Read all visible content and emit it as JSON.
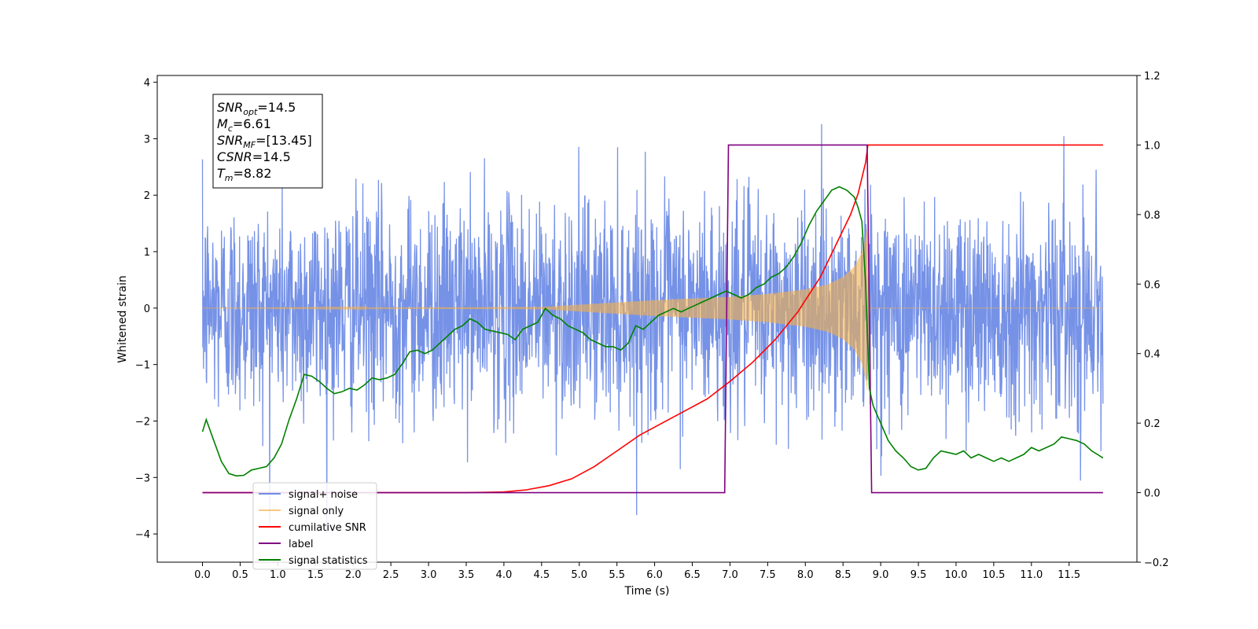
{
  "chart_data": {
    "type": "line",
    "xlabel": "Time (s)",
    "ylabel": "Whitened strain",
    "xlim": [
      -0.6,
      12.4
    ],
    "ylim": [
      -4.5,
      4.12
    ],
    "ylim_right": [
      -0.2,
      1.2
    ],
    "x_ticks": [
      0.0,
      0.5,
      1.0,
      1.5,
      2.0,
      2.5,
      3.0,
      3.5,
      4.0,
      4.5,
      5.0,
      5.5,
      6.0,
      6.5,
      7.0,
      7.5,
      8.0,
      8.5,
      9.0,
      9.5,
      10.0,
      10.5,
      11.0,
      11.5
    ],
    "x_tick_labels": [
      "0.0",
      "0.5",
      "1.0",
      "1.5",
      "2.0",
      "2.5",
      "3.0",
      "3.5",
      "4.0",
      "4.5",
      "5.0",
      "5.5",
      "6.0",
      "6.5",
      "7.0",
      "7.5",
      "8.0",
      "8.5",
      "9.0",
      "9.5",
      "10.0",
      "10.5",
      "11.0",
      "11.5"
    ],
    "y_ticks": [
      -4,
      -3,
      -2,
      -1,
      0,
      1,
      2,
      3,
      4
    ],
    "y_tick_labels": [
      "−4",
      "−3",
      "−2",
      "−1",
      "0",
      "1",
      "2",
      "3",
      "4"
    ],
    "y_ticks_right": [
      -0.2,
      0.0,
      0.2,
      0.4,
      0.6,
      0.8,
      1.0,
      1.2
    ],
    "y_tick_labels_right": [
      "−0.2",
      "0.0",
      "0.2",
      "0.4",
      "0.6",
      "0.8",
      "1.0",
      "1.2"
    ],
    "grid": false,
    "legend_position": "bottom-left",
    "annotation_box": [
      {
        "sym": "SNR",
        "sub": "opt",
        "val": "=14.5"
      },
      {
        "sym": "M",
        "sub": "c",
        "val": "=6.61"
      },
      {
        "sym": "SNR",
        "sub": "MF",
        "val": "=[13.45]"
      },
      {
        "sym": "CSNR",
        "sub": "",
        "val": "=14.5"
      },
      {
        "sym": "T",
        "sub": "m",
        "val": "=8.82"
      }
    ],
    "series": [
      {
        "name": "signal+ noise",
        "axis": "left",
        "color": "#6f8ce6",
        "description_values": {
          "x_start": 0.0,
          "x_end": 11.95,
          "mean": 0.0,
          "std": 1.0,
          "envelope_approx": [
            -2.1,
            2.4
          ]
        }
      },
      {
        "name": "signal only",
        "axis": "left",
        "color": "#f5b14a",
        "envelope": {
          "x": [
            0.0,
            4.5,
            5.0,
            5.5,
            6.0,
            6.5,
            7.0,
            7.5,
            8.0,
            8.3,
            8.5,
            8.65,
            8.75,
            8.8,
            8.82,
            8.83,
            8.86,
            11.95
          ],
          "amplitude": [
            0.0,
            0.02,
            0.06,
            0.1,
            0.14,
            0.17,
            0.2,
            0.25,
            0.33,
            0.42,
            0.55,
            0.73,
            0.98,
            1.25,
            1.45,
            1.1,
            0.0,
            0.0
          ]
        }
      },
      {
        "name": "cumilative SNR",
        "axis": "right",
        "color": "#ff0000",
        "x": [
          0.0,
          3.5,
          4.0,
          4.3,
          4.6,
          4.9,
          5.2,
          5.5,
          5.8,
          6.1,
          6.4,
          6.7,
          7.0,
          7.3,
          7.6,
          7.9,
          8.2,
          8.4,
          8.6,
          8.7,
          8.8,
          8.83,
          11.95
        ],
        "y": [
          0.0,
          0.0,
          0.002,
          0.008,
          0.02,
          0.04,
          0.075,
          0.12,
          0.165,
          0.2,
          0.235,
          0.27,
          0.32,
          0.375,
          0.44,
          0.52,
          0.62,
          0.71,
          0.8,
          0.86,
          0.95,
          1.0,
          1.0
        ]
      },
      {
        "name": "label",
        "axis": "right",
        "color": "#800080",
        "x": [
          0.0,
          6.93,
          6.98,
          8.82,
          8.88,
          11.95
        ],
        "y": [
          0.0,
          0.0,
          1.0,
          1.0,
          0.0,
          0.0
        ]
      },
      {
        "name": "signal statistics",
        "axis": "right",
        "color": "#008000",
        "x": [
          0.0,
          0.05,
          0.15,
          0.25,
          0.35,
          0.45,
          0.55,
          0.65,
          0.75,
          0.85,
          0.95,
          1.05,
          1.15,
          1.25,
          1.35,
          1.45,
          1.55,
          1.65,
          1.75,
          1.85,
          1.95,
          2.05,
          2.15,
          2.25,
          2.35,
          2.45,
          2.55,
          2.65,
          2.75,
          2.85,
          2.95,
          3.05,
          3.15,
          3.25,
          3.35,
          3.45,
          3.55,
          3.65,
          3.75,
          3.85,
          3.95,
          4.05,
          4.15,
          4.25,
          4.35,
          4.45,
          4.55,
          4.65,
          4.75,
          4.85,
          4.95,
          5.05,
          5.15,
          5.25,
          5.35,
          5.45,
          5.55,
          5.65,
          5.75,
          5.85,
          5.95,
          6.05,
          6.15,
          6.25,
          6.35,
          6.45,
          6.55,
          6.65,
          6.75,
          6.85,
          6.95,
          7.05,
          7.15,
          7.25,
          7.35,
          7.45,
          7.55,
          7.65,
          7.75,
          7.85,
          7.95,
          8.05,
          8.15,
          8.25,
          8.35,
          8.45,
          8.55,
          8.6,
          8.65,
          8.7,
          8.75,
          8.8,
          8.85,
          8.9,
          9.0,
          9.1,
          9.2,
          9.3,
          9.4,
          9.5,
          9.6,
          9.7,
          9.8,
          9.9,
          10.0,
          10.1,
          10.2,
          10.3,
          10.4,
          10.5,
          10.6,
          10.7,
          10.8,
          10.9,
          11.0,
          11.1,
          11.2,
          11.3,
          11.4,
          11.5,
          11.6,
          11.7,
          11.8,
          11.95
        ],
        "y": [
          0.175,
          0.21,
          0.15,
          0.09,
          0.055,
          0.048,
          0.05,
          0.065,
          0.07,
          0.075,
          0.1,
          0.14,
          0.21,
          0.27,
          0.34,
          0.335,
          0.32,
          0.3,
          0.285,
          0.29,
          0.3,
          0.295,
          0.31,
          0.33,
          0.325,
          0.33,
          0.34,
          0.37,
          0.405,
          0.41,
          0.4,
          0.41,
          0.43,
          0.45,
          0.47,
          0.48,
          0.5,
          0.49,
          0.47,
          0.465,
          0.46,
          0.455,
          0.44,
          0.47,
          0.48,
          0.49,
          0.53,
          0.51,
          0.5,
          0.48,
          0.47,
          0.46,
          0.44,
          0.43,
          0.42,
          0.42,
          0.41,
          0.43,
          0.48,
          0.47,
          0.49,
          0.51,
          0.52,
          0.53,
          0.52,
          0.53,
          0.54,
          0.55,
          0.56,
          0.57,
          0.58,
          0.57,
          0.56,
          0.57,
          0.59,
          0.6,
          0.62,
          0.63,
          0.65,
          0.68,
          0.72,
          0.77,
          0.81,
          0.84,
          0.87,
          0.88,
          0.87,
          0.86,
          0.85,
          0.82,
          0.78,
          0.6,
          0.3,
          0.25,
          0.2,
          0.15,
          0.12,
          0.1,
          0.075,
          0.065,
          0.07,
          0.1,
          0.12,
          0.115,
          0.11,
          0.12,
          0.1,
          0.11,
          0.1,
          0.09,
          0.1,
          0.09,
          0.1,
          0.11,
          0.13,
          0.12,
          0.13,
          0.14,
          0.16,
          0.155,
          0.15,
          0.14,
          0.12,
          0.1
        ]
      }
    ]
  }
}
